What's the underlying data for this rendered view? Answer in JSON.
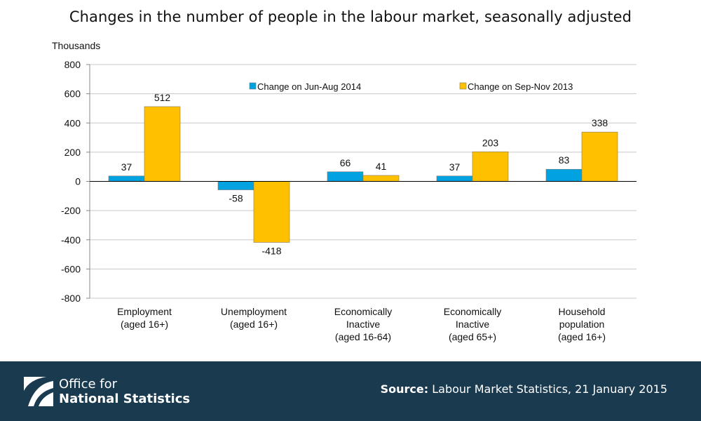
{
  "title": "Changes in the number of people in the labour market, seasonally adjusted",
  "footer": {
    "org_line1": "Office for",
    "org_line2": "National Statistics",
    "source_label": "Source:",
    "source_text": "Labour Market Statistics, 21 January 2015",
    "background_color": "#1a3a4f"
  },
  "chart_data": {
    "type": "bar",
    "title": "Changes in the number of people in the labour market, seasonally adjusted",
    "ylabel": "Thousands",
    "xlabel": "",
    "ylim": [
      -800,
      800
    ],
    "yticks": [
      800,
      600,
      400,
      200,
      0,
      -200,
      -400,
      -600,
      -800
    ],
    "grid": true,
    "legend_position": "top",
    "categories": [
      [
        "Employment",
        "(aged 16+)"
      ],
      [
        "Unemployment",
        "(aged 16+)"
      ],
      [
        "Economically",
        "Inactive",
        "(aged 16-64)"
      ],
      [
        "Economically",
        "Inactive",
        "(aged 65+)"
      ],
      [
        "Household",
        "population",
        "(aged 16+)"
      ]
    ],
    "series": [
      {
        "name": "Change on Jun-Aug 2014",
        "color": "#00a3e0",
        "values": [
          37,
          -58,
          66,
          37,
          83
        ]
      },
      {
        "name": "Change on Sep-Nov 2013",
        "color": "#ffc000",
        "values": [
          512,
          -418,
          41,
          203,
          338
        ]
      }
    ]
  }
}
